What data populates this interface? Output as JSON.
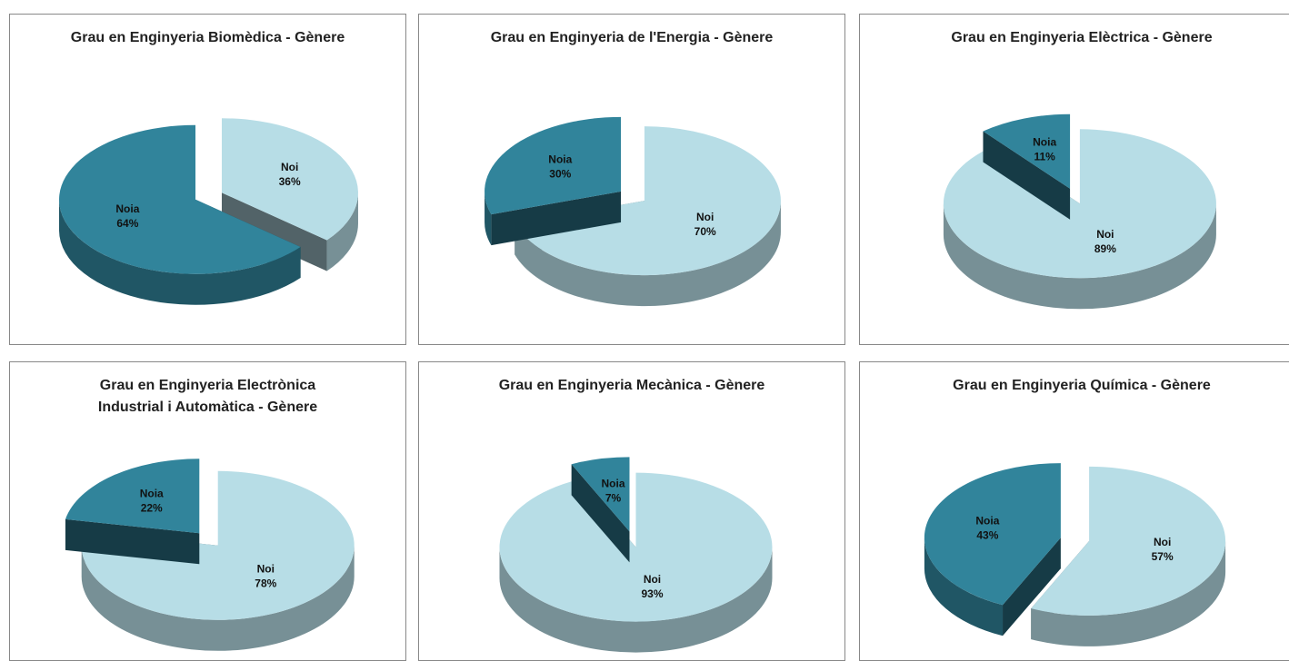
{
  "chart_data": [
    {
      "type": "pie",
      "title": "Grau en Enginyeria Biomèdica - Gènere",
      "categories": [
        "Noi",
        "Noia"
      ],
      "values": [
        36,
        64
      ],
      "value_labels": [
        "36%",
        "64%"
      ],
      "colors": [
        "#b7dde6",
        "#31849b"
      ]
    },
    {
      "type": "pie",
      "title": "Grau en Enginyeria de l'Energia - Gènere",
      "categories": [
        "Noi",
        "Noia"
      ],
      "values": [
        70,
        30
      ],
      "value_labels": [
        "70%",
        "30%"
      ],
      "colors": [
        "#b7dde6",
        "#31849b"
      ]
    },
    {
      "type": "pie",
      "title": "Grau en Enginyeria Elèctrica - Gènere",
      "categories": [
        "Noi",
        "Noia"
      ],
      "values": [
        89,
        11
      ],
      "value_labels": [
        "89%",
        "11%"
      ],
      "colors": [
        "#b7dde6",
        "#31849b"
      ]
    },
    {
      "type": "pie",
      "title": "Grau en Enginyeria Electrònica Industrial i Automàtica - Gènere",
      "categories": [
        "Noi",
        "Noia"
      ],
      "values": [
        78,
        22
      ],
      "value_labels": [
        "78%",
        "22%"
      ],
      "colors": [
        "#b7dde6",
        "#31849b"
      ]
    },
    {
      "type": "pie",
      "title": "Grau en Enginyeria Mecànica - Gènere",
      "categories": [
        "Noi",
        "Noia"
      ],
      "values": [
        93,
        7
      ],
      "value_labels": [
        "93%",
        "7%"
      ],
      "colors": [
        "#b7dde6",
        "#31849b"
      ]
    },
    {
      "type": "pie",
      "title": "Grau en Enginyeria Química - Gènere",
      "categories": [
        "Noi",
        "Noia"
      ],
      "values": [
        57,
        43
      ],
      "value_labels": [
        "57%",
        "43%"
      ],
      "colors": [
        "#b7dde6",
        "#31849b"
      ]
    }
  ]
}
